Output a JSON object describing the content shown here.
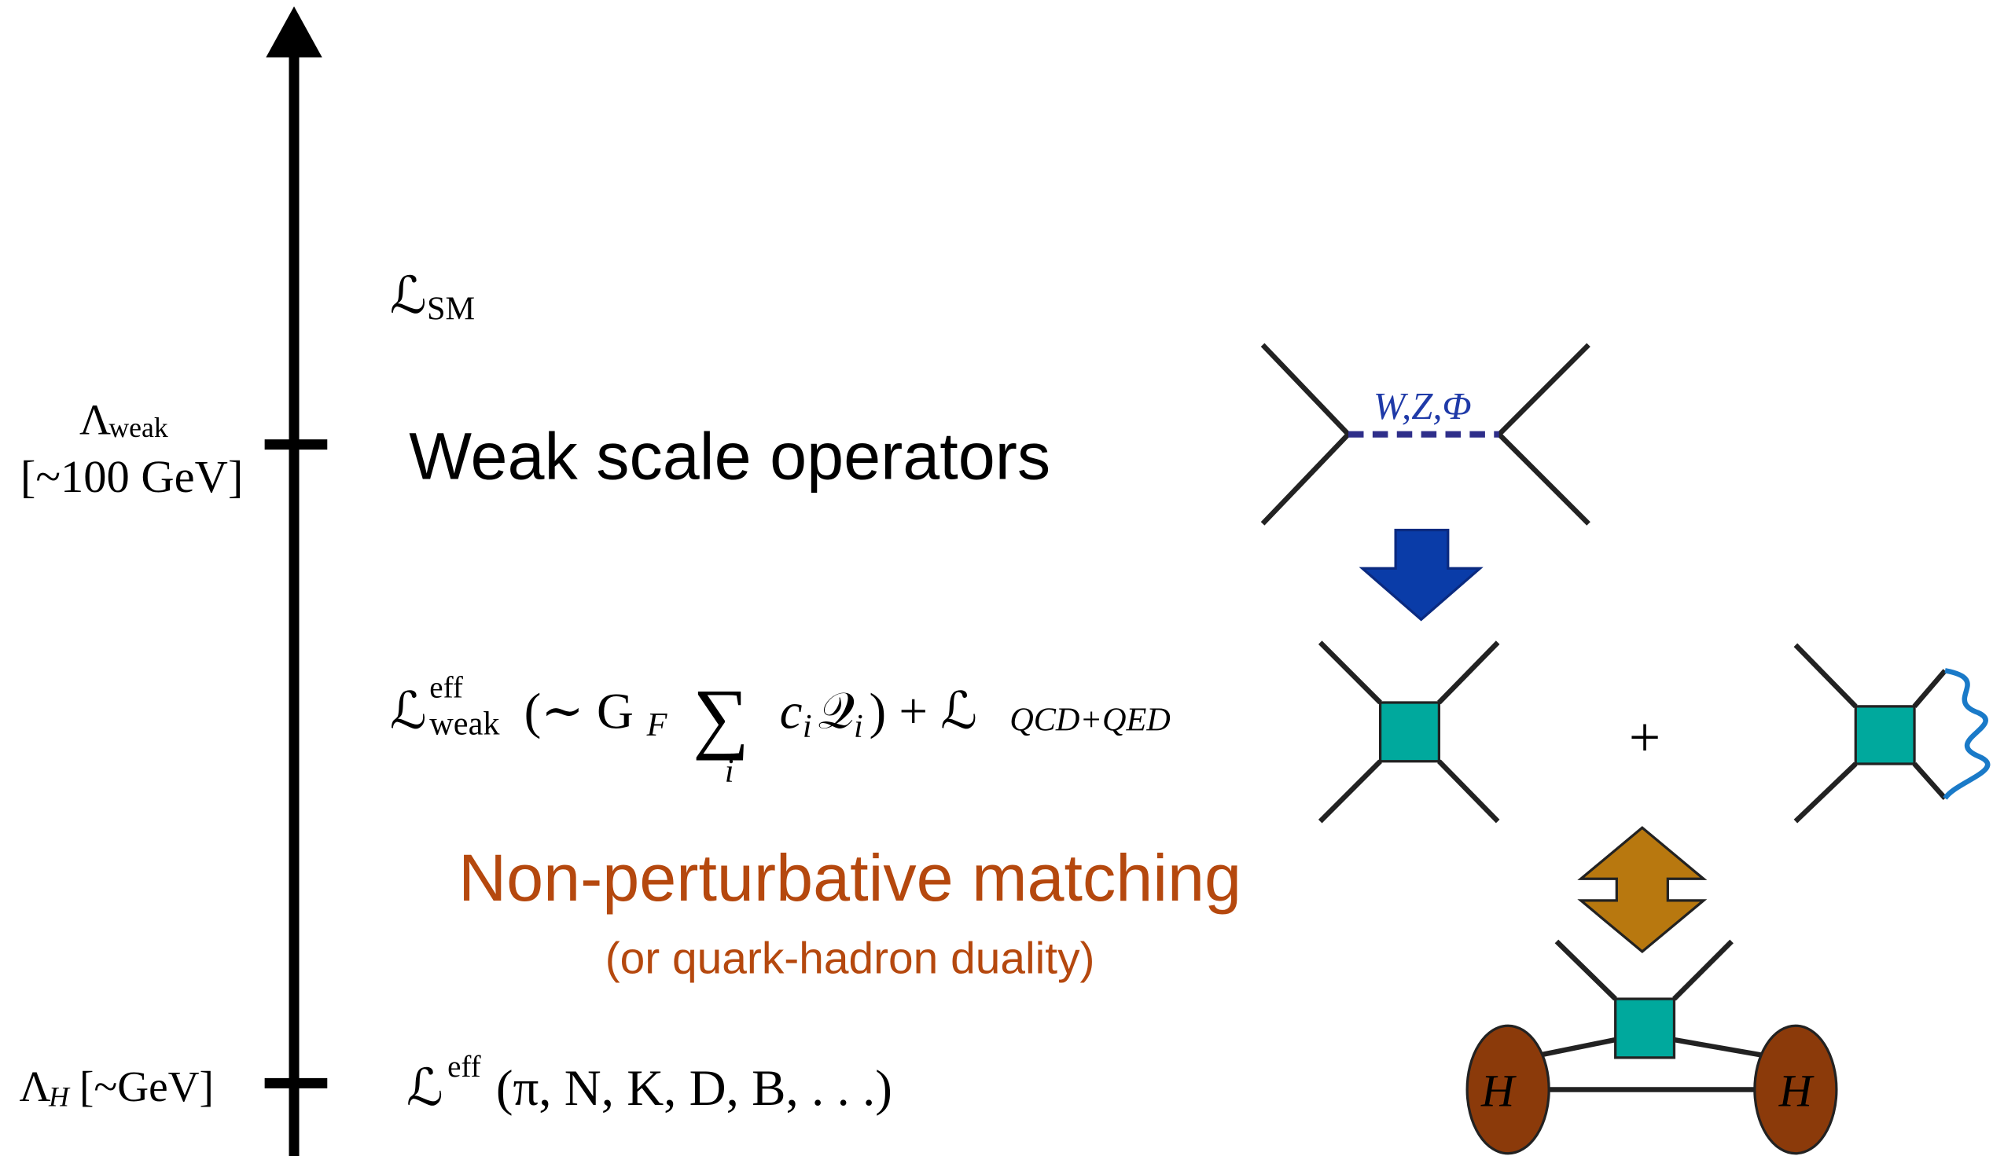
{
  "axis": {
    "top_label": {
      "symbol": "Λ",
      "sub": "weak",
      "scale": "[~100 GeV]"
    },
    "bottom_label": {
      "symbol": "Λ",
      "sub": "H",
      "scale": "[~GeV]"
    }
  },
  "lagrangian_sm": {
    "symbol": "ℒ",
    "sub": "SM"
  },
  "weak_heading": "Weak scale operators",
  "exchange_label": "W,Z,Φ",
  "lagrangian_weak": {
    "symbol": "ℒ",
    "sup": "eff",
    "sub": "weak",
    "open": "(∼ G",
    "coupling_sub": "F",
    "sum": "∑",
    "index": "i",
    "coef": "c",
    "coef_sub": "i",
    "operator": "𝒬",
    "operator_sub": "i",
    "rest": ") + ℒ",
    "rest_sub": "QCD+QED"
  },
  "plus": "+",
  "matching": {
    "title": "Non-perturbative matching",
    "subtitle": "(or quark-hadron duality)"
  },
  "lagrangian_hadron": {
    "symbol": "ℒ",
    "sup": "eff",
    "args": "(π, N, K, D, B, . . .)"
  },
  "hadrons": [
    "H",
    "H"
  ]
}
